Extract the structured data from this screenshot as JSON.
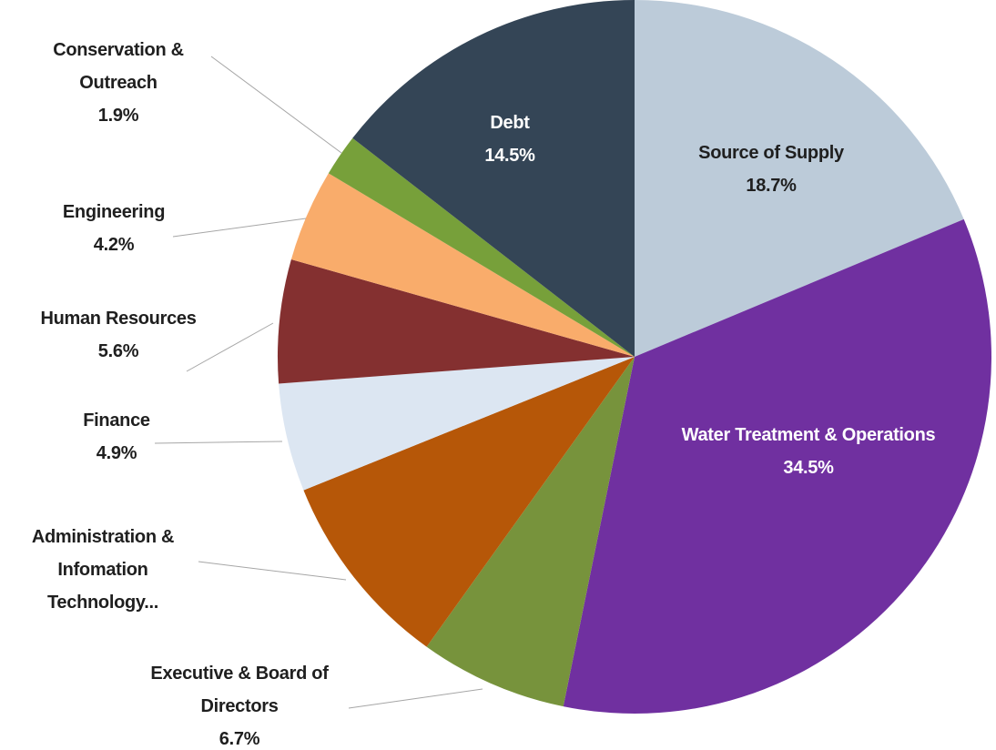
{
  "chart_data": {
    "type": "pie",
    "categories": [
      "Source of Supply",
      "Water Treatment & Operations",
      "Executive & Board of Directors",
      "Administration & Infomation Technology...",
      "Finance",
      "Human Resources",
      "Engineering",
      "Conservation & Outreach",
      "Debt"
    ],
    "values": [
      18.7,
      34.5,
      6.7,
      9.0,
      4.9,
      5.6,
      4.2,
      1.9,
      14.5
    ],
    "value_labels": [
      "18.7%",
      "34.5%",
      "6.7%",
      null,
      "4.9%",
      "5.6%",
      "4.2%",
      "1.9%",
      "14.5%"
    ],
    "colors": [
      "#bccbd9",
      "#7030a0",
      "#77933c",
      "#b65708",
      "#dce6f2",
      "#843030",
      "#f9ac6b",
      "#77a03a",
      "#344556"
    ]
  }
}
